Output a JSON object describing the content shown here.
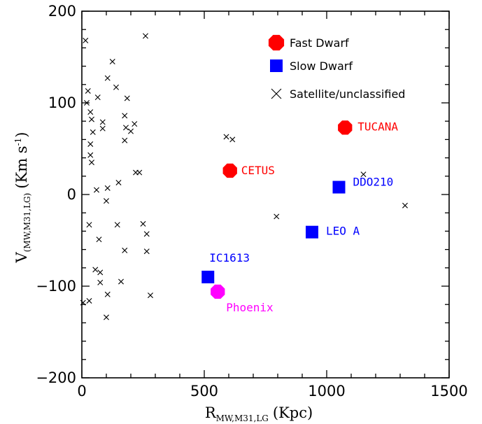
{
  "chart_data": {
    "type": "scatter",
    "title": "",
    "xlabel": "R",
    "xlabel_sub": "MW,M31,LG",
    "xlabel_unit": "(Kpc)",
    "ylabel": "V",
    "ylabel_sub": "(MW,M31,LG)",
    "ylabel_unit": "(Km s",
    "ylabel_unit_sup": "-1",
    "ylabel_unit_close": ")",
    "xlim": [
      0,
      1500
    ],
    "ylim": [
      -200,
      200
    ],
    "xticks": [
      0,
      500,
      1000,
      1500
    ],
    "yticks": [
      -200,
      -100,
      0,
      100,
      200
    ],
    "legend": {
      "position": "top-right",
      "entries": [
        {
          "label": "Fast Dwarf",
          "marker": "octagon",
          "color": "#ff0000"
        },
        {
          "label": "Slow Dwarf",
          "marker": "square",
          "color": "#0000ff"
        },
        {
          "label": "Satellite/unclassified",
          "marker": "cross",
          "color": "#000000"
        }
      ]
    },
    "series": [
      {
        "name": "Fast Dwarf",
        "marker": "octagon",
        "color": "#ff0000",
        "points": [
          {
            "x": 605,
            "y": 26,
            "label": "CETUS"
          },
          {
            "x": 1075,
            "y": 73,
            "label": "TUCANA"
          }
        ]
      },
      {
        "name": "Slow Dwarf",
        "marker": "square",
        "color": "#0000ff",
        "points": [
          {
            "x": 515,
            "y": -90,
            "label": "IC1613"
          },
          {
            "x": 940,
            "y": -41,
            "label": "LEO A"
          },
          {
            "x": 1050,
            "y": 8,
            "label": "DDO210"
          }
        ]
      },
      {
        "name": "Phoenix",
        "marker": "octagon",
        "color": "#ff00ff",
        "points": [
          {
            "x": 555,
            "y": -106,
            "label": "Phoenix"
          }
        ]
      },
      {
        "name": "Satellite/unclassified",
        "marker": "cross",
        "color": "#000000",
        "points": [
          {
            "x": 15,
            "y": 168
          },
          {
            "x": 260,
            "y": 173
          },
          {
            "x": 125,
            "y": 145
          },
          {
            "x": 105,
            "y": 127
          },
          {
            "x": 140,
            "y": 117
          },
          {
            "x": 25,
            "y": 113
          },
          {
            "x": 65,
            "y": 106
          },
          {
            "x": 185,
            "y": 105
          },
          {
            "x": 20,
            "y": 100
          },
          {
            "x": 35,
            "y": 90
          },
          {
            "x": 175,
            "y": 86
          },
          {
            "x": 40,
            "y": 82
          },
          {
            "x": 85,
            "y": 79
          },
          {
            "x": 215,
            "y": 77
          },
          {
            "x": 85,
            "y": 72
          },
          {
            "x": 180,
            "y": 73
          },
          {
            "x": 200,
            "y": 69
          },
          {
            "x": 45,
            "y": 68
          },
          {
            "x": 175,
            "y": 59
          },
          {
            "x": 35,
            "y": 55
          },
          {
            "x": 35,
            "y": 43
          },
          {
            "x": 40,
            "y": 35
          },
          {
            "x": 220,
            "y": 24
          },
          {
            "x": 235,
            "y": 24
          },
          {
            "x": 150,
            "y": 13
          },
          {
            "x": 105,
            "y": 7
          },
          {
            "x": 60,
            "y": 5
          },
          {
            "x": 100,
            "y": -7
          },
          {
            "x": 30,
            "y": -33
          },
          {
            "x": 145,
            "y": -33
          },
          {
            "x": 250,
            "y": -32
          },
          {
            "x": 265,
            "y": -43
          },
          {
            "x": 70,
            "y": -49
          },
          {
            "x": 175,
            "y": -61
          },
          {
            "x": 265,
            "y": -62
          },
          {
            "x": 55,
            "y": -82
          },
          {
            "x": 75,
            "y": -85
          },
          {
            "x": 75,
            "y": -96
          },
          {
            "x": 160,
            "y": -95
          },
          {
            "x": 105,
            "y": -109
          },
          {
            "x": 280,
            "y": -110
          },
          {
            "x": 5,
            "y": -118
          },
          {
            "x": 30,
            "y": -116
          },
          {
            "x": 100,
            "y": -134
          },
          {
            "x": 590,
            "y": 63
          },
          {
            "x": 615,
            "y": 60
          },
          {
            "x": 795,
            "y": -24
          },
          {
            "x": 1150,
            "y": 22
          },
          {
            "x": 1320,
            "y": -12
          }
        ]
      }
    ]
  }
}
